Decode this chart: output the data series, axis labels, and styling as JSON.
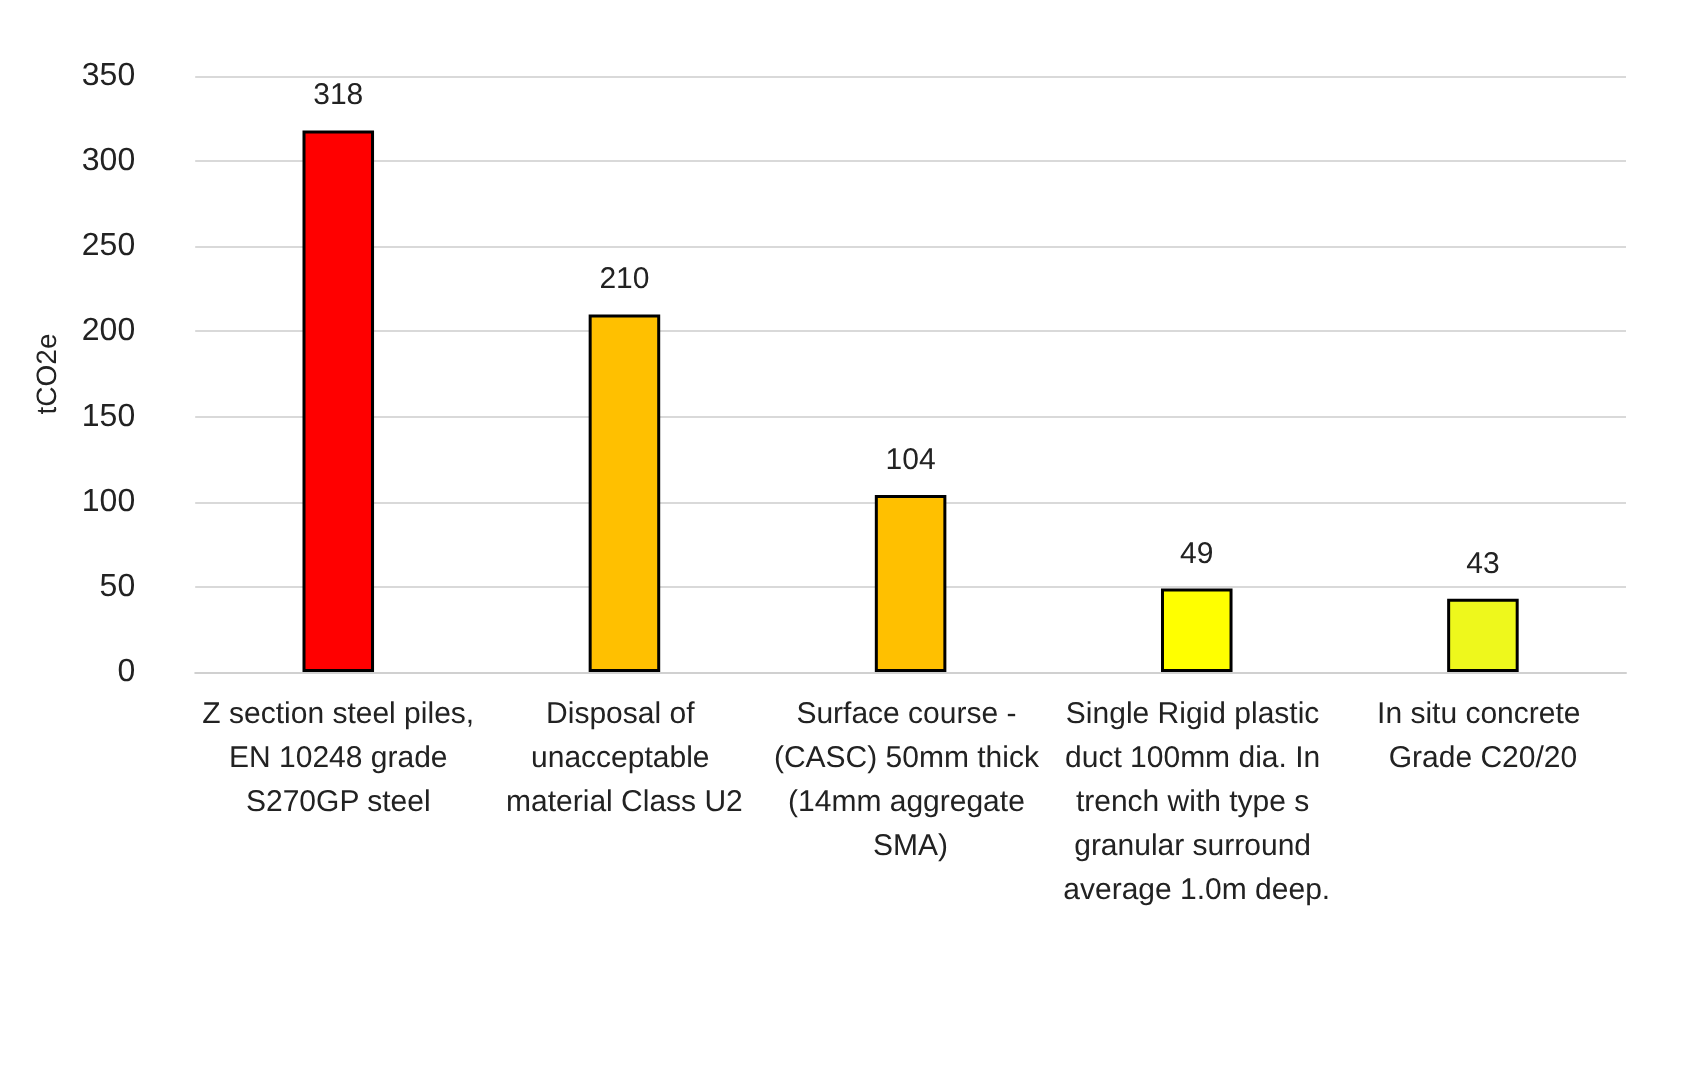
{
  "chart_data": {
    "type": "bar",
    "ylabel": "tCO2e",
    "categories": [
      "Z section steel piles, EN 10248 grade S270GP steel",
      "Disposal of unacceptable material Class U2",
      "Surface course - (CASC) 50mm thick (14mm aggregate SMA)",
      "Single Rigid plastic duct 100mm dia. In trench with type s granular surround average 1.0m deep.",
      "In situ concrete Grade C20/20"
    ],
    "values": [
      318,
      210,
      104,
      49,
      43
    ],
    "colors": [
      "#ff0000",
      "#ffc000",
      "#ffc000",
      "#ffff00",
      "#eef81c"
    ],
    "ylim": [
      0,
      350
    ],
    "yticks": [
      0,
      50,
      100,
      150,
      200,
      250,
      300,
      350
    ],
    "grid": "y",
    "data_labels": true
  }
}
